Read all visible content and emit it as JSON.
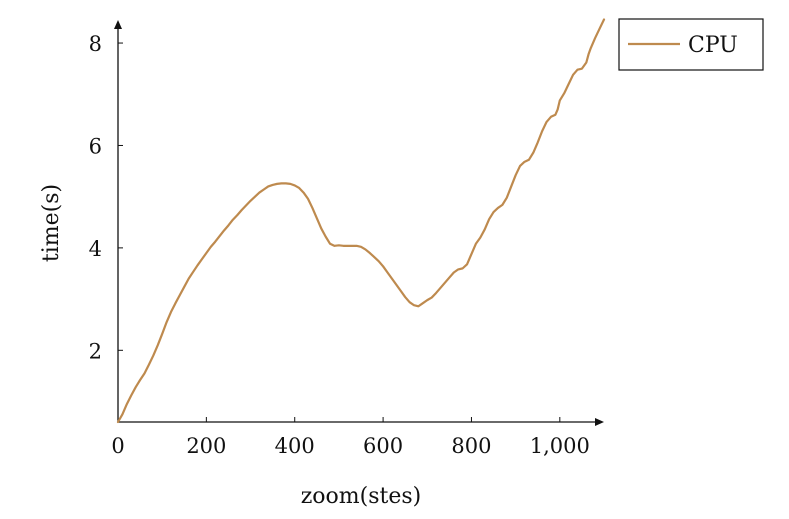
{
  "chart_data": {
    "type": "line",
    "title": "",
    "xlabel": "zoom(stes)",
    "ylabel": "time(s)",
    "xlim": [
      0,
      1100
    ],
    "ylim": [
      0.6,
      8.45
    ],
    "x_ticks": [
      {
        "value": 0,
        "label": "0"
      },
      {
        "value": 200,
        "label": "200"
      },
      {
        "value": 400,
        "label": "400"
      },
      {
        "value": 600,
        "label": "600"
      },
      {
        "value": 800,
        "label": "800"
      },
      {
        "value": 1000,
        "label": "1,000"
      }
    ],
    "y_ticks": [
      {
        "value": 2,
        "label": "2"
      },
      {
        "value": 4,
        "label": "4"
      },
      {
        "value": 6,
        "label": "6"
      },
      {
        "value": 8,
        "label": "8"
      }
    ],
    "grid": false,
    "legend": {
      "position": "outside-top-right",
      "entries": [
        "CPU"
      ]
    },
    "series": [
      {
        "name": "CPU",
        "color": "#BE8A4E",
        "x": [
          0,
          10,
          20,
          30,
          40,
          50,
          60,
          70,
          80,
          90,
          100,
          110,
          120,
          130,
          140,
          150,
          160,
          170,
          180,
          190,
          200,
          210,
          220,
          230,
          240,
          250,
          260,
          270,
          280,
          290,
          300,
          310,
          320,
          330,
          340,
          350,
          360,
          370,
          380,
          390,
          400,
          410,
          420,
          430,
          440,
          450,
          460,
          470,
          480,
          490,
          500,
          510,
          520,
          530,
          540,
          550,
          560,
          570,
          580,
          590,
          600,
          610,
          620,
          630,
          640,
          650,
          660,
          670,
          680,
          690,
          700,
          710,
          720,
          730,
          740,
          750,
          760,
          770,
          780,
          790,
          800,
          810,
          820,
          830,
          840,
          850,
          860,
          870,
          880,
          890,
          900,
          910,
          920,
          930,
          940,
          950,
          960,
          970,
          980,
          990,
          995,
          1000,
          1010,
          1020,
          1030,
          1040,
          1050,
          1060,
          1065,
          1070,
          1080,
          1090,
          1100
        ],
        "y": [
          0.6,
          0.75,
          0.95,
          1.12,
          1.28,
          1.42,
          1.55,
          1.72,
          1.9,
          2.1,
          2.32,
          2.55,
          2.75,
          2.92,
          3.08,
          3.24,
          3.4,
          3.53,
          3.66,
          3.78,
          3.9,
          4.02,
          4.12,
          4.23,
          4.34,
          4.44,
          4.55,
          4.64,
          4.74,
          4.83,
          4.92,
          5.0,
          5.08,
          5.14,
          5.2,
          5.23,
          5.25,
          5.26,
          5.26,
          5.25,
          5.22,
          5.17,
          5.08,
          4.96,
          4.78,
          4.58,
          4.38,
          4.22,
          4.08,
          4.04,
          4.05,
          4.04,
          4.04,
          4.04,
          4.04,
          4.02,
          3.97,
          3.9,
          3.82,
          3.74,
          3.64,
          3.52,
          3.4,
          3.28,
          3.16,
          3.04,
          2.94,
          2.88,
          2.86,
          2.92,
          2.98,
          3.03,
          3.12,
          3.22,
          3.32,
          3.42,
          3.52,
          3.58,
          3.6,
          3.68,
          3.88,
          4.08,
          4.2,
          4.36,
          4.56,
          4.7,
          4.78,
          4.84,
          4.98,
          5.2,
          5.42,
          5.6,
          5.68,
          5.72,
          5.86,
          6.06,
          6.28,
          6.46,
          6.56,
          6.6,
          6.7,
          6.88,
          7.02,
          7.2,
          7.38,
          7.48,
          7.5,
          7.62,
          7.78,
          7.9,
          8.1,
          8.28,
          8.46
        ]
      }
    ]
  }
}
